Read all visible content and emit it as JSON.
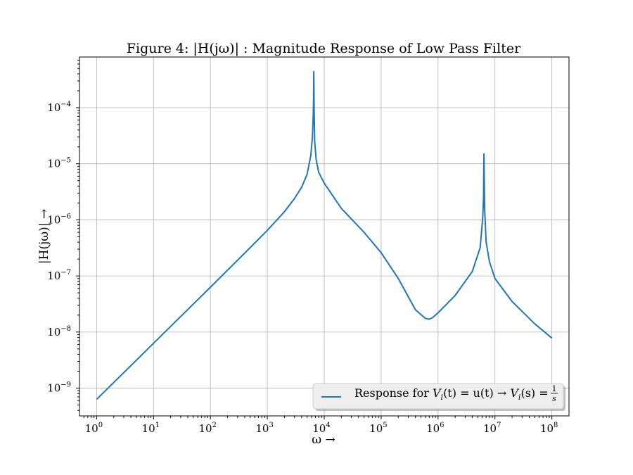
{
  "chart_data": {
    "type": "line",
    "title": "Figure 4: |H(jω)| : Magnitude Response of Low Pass Filter",
    "xlabel": "ω →",
    "ylabel": "|H(jω)| →",
    "xscale": "log",
    "yscale": "log",
    "xlim": [
      0.5,
      200000000
    ],
    "ylim": [
      3.2e-10,
      0.0008
    ],
    "grid": true,
    "legend_position": "lower right",
    "x_ticks": [
      {
        "value": 1,
        "base": "10",
        "exp": "0"
      },
      {
        "value": 10,
        "base": "10",
        "exp": "1"
      },
      {
        "value": 100,
        "base": "10",
        "exp": "2"
      },
      {
        "value": 1000,
        "base": "10",
        "exp": "3"
      },
      {
        "value": 10000,
        "base": "10",
        "exp": "4"
      },
      {
        "value": 100000,
        "base": "10",
        "exp": "5"
      },
      {
        "value": 1000000,
        "base": "10",
        "exp": "6"
      },
      {
        "value": 10000000,
        "base": "10",
        "exp": "7"
      },
      {
        "value": 100000000,
        "base": "10",
        "exp": "8"
      }
    ],
    "y_ticks": [
      {
        "value": 1e-09,
        "base": "10",
        "exp": "−9"
      },
      {
        "value": 1e-08,
        "base": "10",
        "exp": "−8"
      },
      {
        "value": 1e-07,
        "base": "10",
        "exp": "−7"
      },
      {
        "value": 1e-06,
        "base": "10",
        "exp": "−6"
      },
      {
        "value": 1e-05,
        "base": "10",
        "exp": "−5"
      },
      {
        "value": 0.0001,
        "base": "10",
        "exp": "−4"
      }
    ],
    "series": [
      {
        "name": "Response for Vi(t) = u(t) → Vi(s) = 1/s",
        "color": "#1f77b4",
        "x": [
          1,
          10,
          100,
          500,
          1000,
          2000,
          3000,
          4000,
          5000,
          5800,
          6200,
          6400,
          6500,
          6550,
          6650,
          6800,
          7200,
          8000,
          10000,
          20000,
          50000,
          100000,
          200000,
          400000,
          600000,
          700000,
          800000,
          1000000,
          2000000,
          4000000,
          5500000,
          6100000,
          6300000,
          6400000,
          6600000,
          7000000,
          8000000,
          10000000,
          20000000,
          50000000,
          100000000
        ],
        "y": [
          6.3e-10,
          6.3e-09,
          6.3e-08,
          3.2e-07,
          6.5e-07,
          1.4e-06,
          2.4e-06,
          3.8e-06,
          6.5e-06,
          1.4e-05,
          3e-05,
          7e-05,
          0.00015,
          0.00044,
          9e-05,
          2.5e-05,
          1.2e-05,
          7e-06,
          4.5e-06,
          1.6e-06,
          6e-07,
          2.6e-07,
          9e-08,
          2.5e-08,
          1.75e-08,
          1.7e-08,
          1.8e-08,
          2.2e-08,
          4.5e-08,
          1.2e-07,
          3.2e-07,
          1.1e-06,
          2.5e-06,
          1.5e-05,
          1.5e-06,
          4e-07,
          1.8e-07,
          9e-08,
          3.5e-08,
          1.4e-08,
          7.8e-09
        ]
      }
    ],
    "legend": {
      "prefix": "Response for ",
      "expr": "V",
      "sub1": "i",
      "mid": "(t) = u(t) → ",
      "expr2": "V",
      "sub2": "i",
      "mid2": "(s) = ",
      "num": "1",
      "den": "s"
    }
  }
}
